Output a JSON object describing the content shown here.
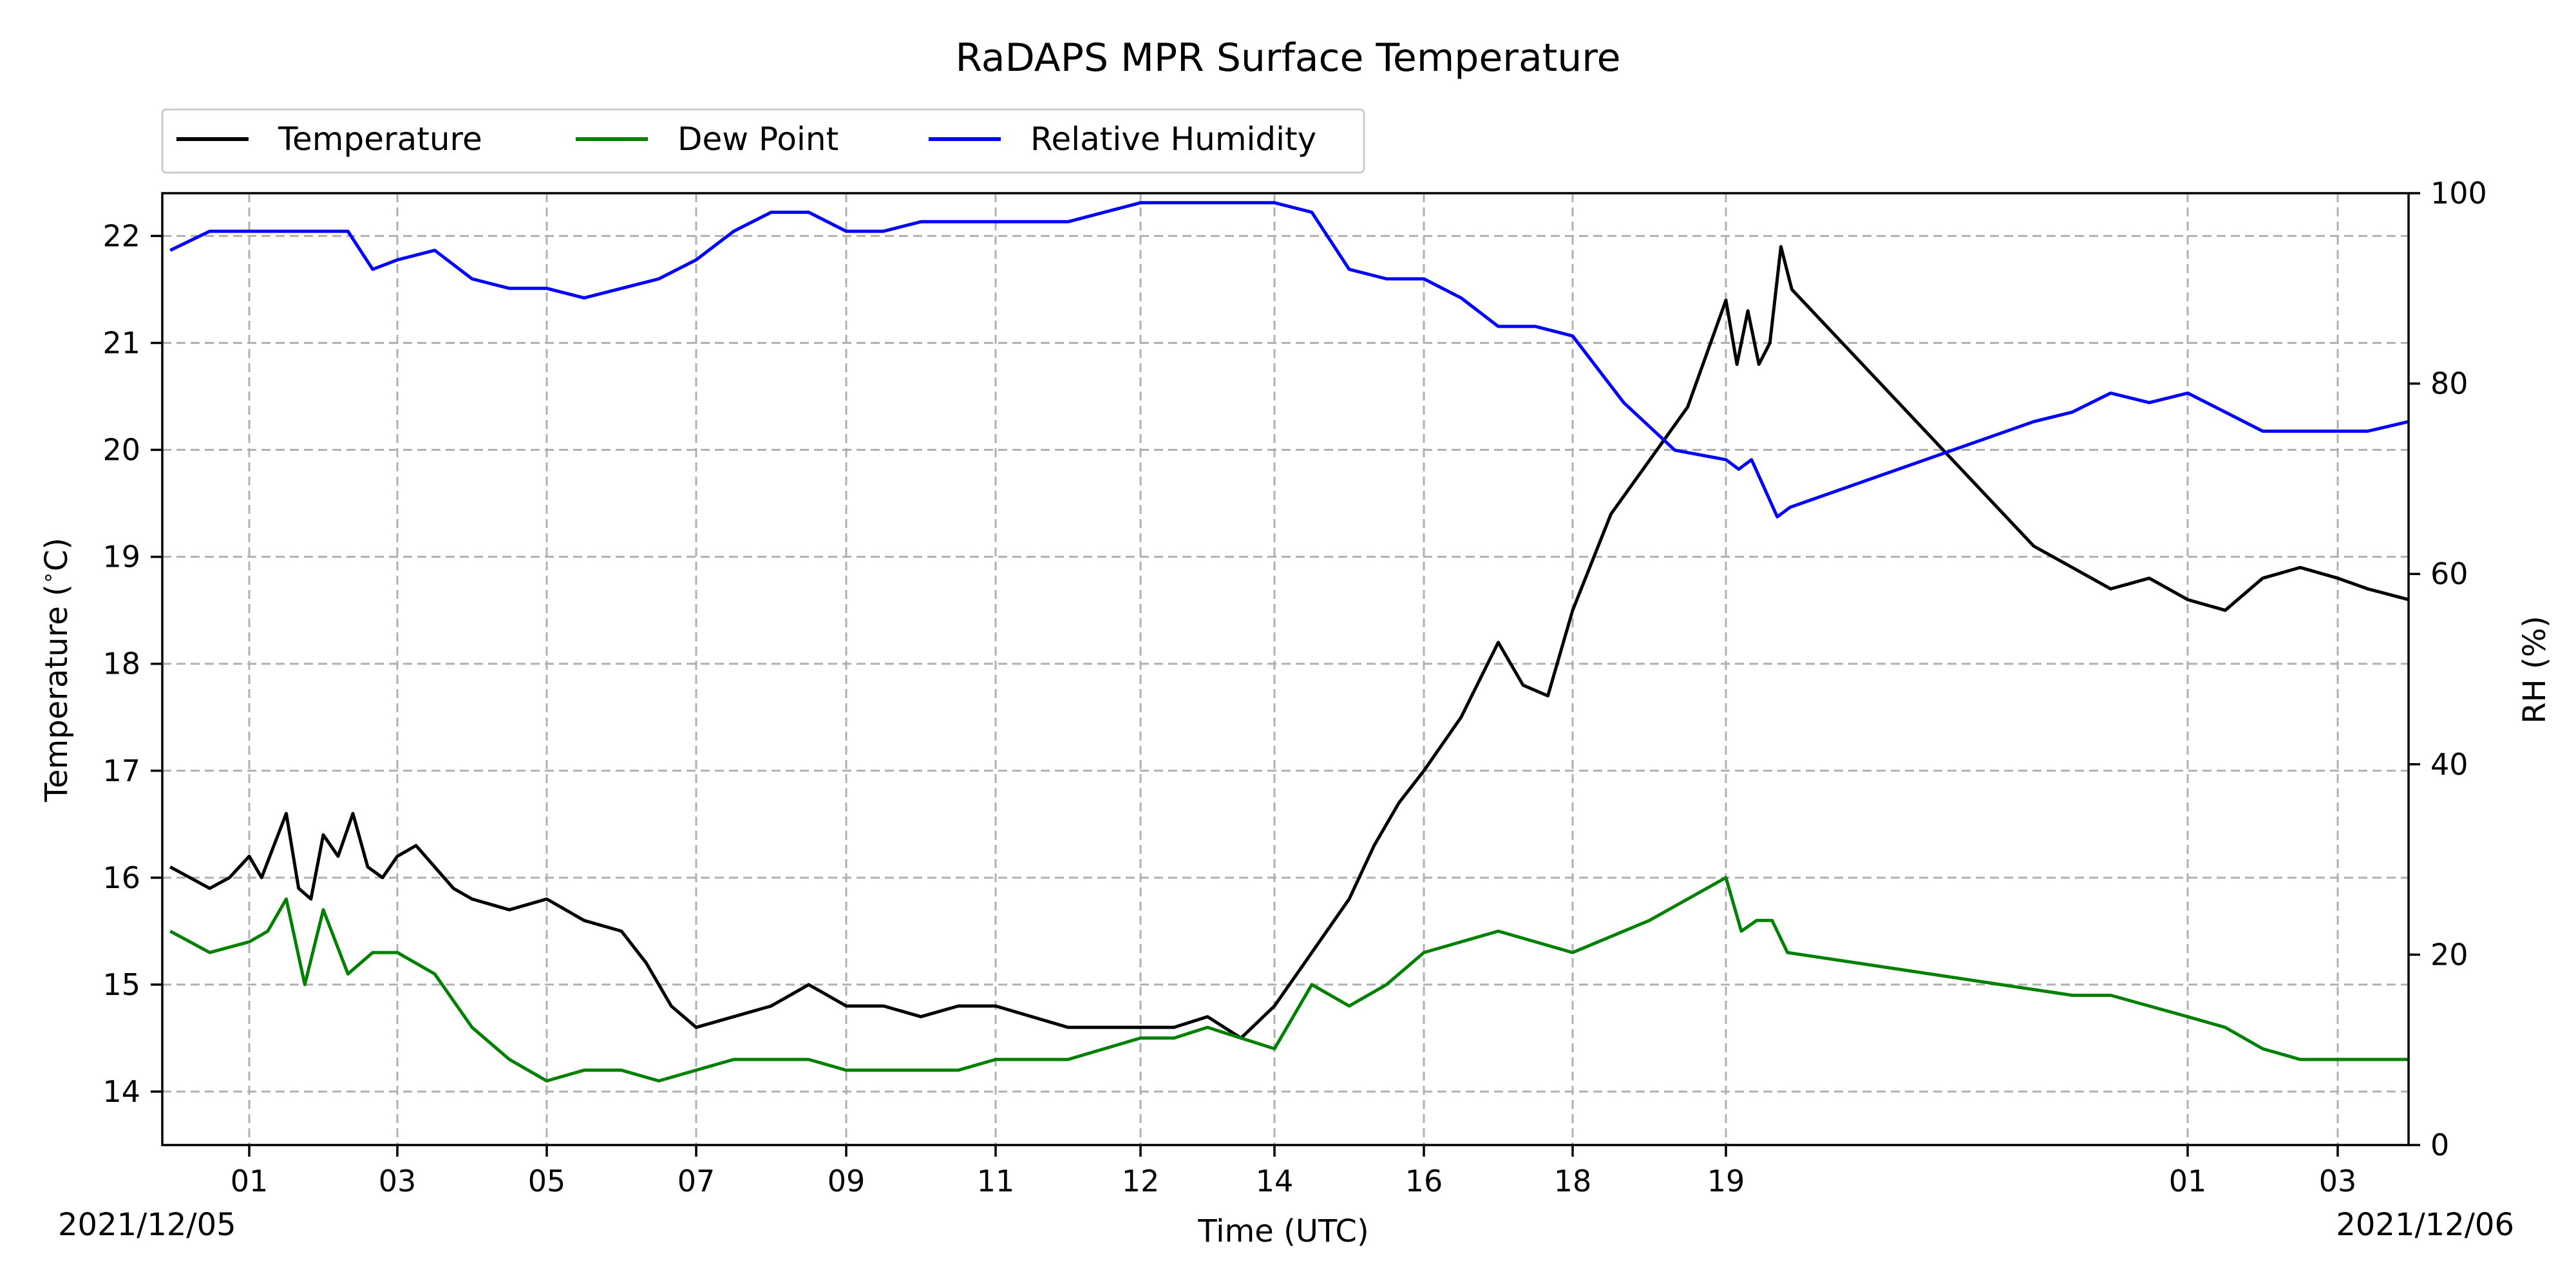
{
  "chart_data": {
    "type": "line",
    "title": "RaDAPS MPR Surface Temperature",
    "xlabel": "Time (UTC)",
    "ylabel_left": "Temperature (°C)",
    "ylabel_right": "RH (%)",
    "date_start": "2021/12/05",
    "date_end": "2021/12/06",
    "x_ticks": [
      "01",
      "03",
      "05",
      "07",
      "09",
      "11",
      "12",
      "14",
      "16",
      "18",
      "19",
      "01",
      "03"
    ],
    "ylim_left": [
      13.5,
      22.4
    ],
    "yticks_left": [
      "14",
      "15",
      "16",
      "17",
      "18",
      "19",
      "20",
      "21",
      "22"
    ],
    "ylim_right": [
      0,
      100
    ],
    "yticks_right": [
      "0",
      "20",
      "40",
      "60",
      "80",
      "100"
    ],
    "grid": true,
    "legend_location": "top-left, above plot",
    "series": [
      {
        "name": "Temperature",
        "axis": "left",
        "color": "#000000",
        "points": [
          [
            "00",
            16.1
          ],
          [
            "00",
            16.0
          ],
          [
            "00",
            15.9
          ],
          [
            "00",
            16.0
          ],
          [
            "01",
            16.2
          ],
          [
            "01",
            16.0
          ],
          [
            "01",
            16.3
          ],
          [
            "01",
            16.6
          ],
          [
            "01",
            15.9
          ],
          [
            "01",
            15.8
          ],
          [
            "02",
            16.4
          ],
          [
            "02",
            16.2
          ],
          [
            "02",
            16.6
          ],
          [
            "02",
            16.1
          ],
          [
            "02",
            16.0
          ],
          [
            "03",
            16.2
          ],
          [
            "03",
            16.3
          ],
          [
            "03",
            16.1
          ],
          [
            "03",
            15.9
          ],
          [
            "04",
            15.8
          ],
          [
            "04",
            15.7
          ],
          [
            "05",
            15.8
          ],
          [
            "05",
            15.6
          ],
          [
            "06",
            15.5
          ],
          [
            "06",
            15.2
          ],
          [
            "06",
            14.8
          ],
          [
            "07",
            14.6
          ],
          [
            "07",
            14.7
          ],
          [
            "08",
            14.8
          ],
          [
            "08",
            15.0
          ],
          [
            "09",
            14.8
          ],
          [
            "09",
            14.8
          ],
          [
            "10",
            14.7
          ],
          [
            "10",
            14.8
          ],
          [
            "11",
            14.8
          ],
          [
            "11",
            14.6
          ],
          [
            "12",
            14.6
          ],
          [
            "12",
            14.6
          ],
          [
            "13",
            14.7
          ],
          [
            "13",
            14.5
          ],
          [
            "14",
            14.8
          ],
          [
            "14",
            15.3
          ],
          [
            "15",
            15.8
          ],
          [
            "15",
            16.3
          ],
          [
            "15",
            16.7
          ],
          [
            "16",
            17.0
          ],
          [
            "16",
            17.5
          ],
          [
            "17",
            18.2
          ],
          [
            "17",
            17.8
          ],
          [
            "17",
            17.7
          ],
          [
            "18",
            18.5
          ],
          [
            "18",
            19.4
          ],
          [
            "18",
            19.9
          ],
          [
            "18",
            20.4
          ],
          [
            "19",
            21.4
          ],
          [
            "19",
            20.8
          ],
          [
            "19",
            21.3
          ],
          [
            "19",
            20.8
          ],
          [
            "19",
            21.0
          ],
          [
            "19",
            21.9
          ],
          [
            "19",
            21.5
          ],
          [
            "23",
            19.1
          ],
          [
            "23",
            18.9
          ],
          [
            "00",
            18.7
          ],
          [
            "00",
            18.8
          ],
          [
            "01",
            18.6
          ],
          [
            "01",
            18.5
          ],
          [
            "02",
            18.8
          ],
          [
            "02",
            18.9
          ],
          [
            "03",
            18.8
          ],
          [
            "03",
            18.7
          ],
          [
            "04",
            18.6
          ]
        ]
      },
      {
        "name": "Dew Point",
        "axis": "left",
        "color": "#008000",
        "points": [
          [
            "00",
            15.5
          ],
          [
            "00",
            15.3
          ],
          [
            "01",
            15.4
          ],
          [
            "01",
            15.5
          ],
          [
            "01",
            15.8
          ],
          [
            "01",
            15.0
          ],
          [
            "02",
            15.7
          ],
          [
            "02",
            15.1
          ],
          [
            "02",
            15.3
          ],
          [
            "03",
            15.3
          ],
          [
            "03",
            15.1
          ],
          [
            "04",
            14.6
          ],
          [
            "04",
            14.3
          ],
          [
            "05",
            14.1
          ],
          [
            "05",
            14.2
          ],
          [
            "06",
            14.2
          ],
          [
            "06",
            14.1
          ],
          [
            "07",
            14.3
          ],
          [
            "08",
            14.3
          ],
          [
            "08",
            14.3
          ],
          [
            "09",
            14.2
          ],
          [
            "09",
            14.2
          ],
          [
            "10",
            14.2
          ],
          [
            "10",
            14.2
          ],
          [
            "11",
            14.3
          ],
          [
            "11",
            14.3
          ],
          [
            "12",
            14.5
          ],
          [
            "12",
            14.5
          ],
          [
            "13",
            14.6
          ],
          [
            "13",
            14.5
          ],
          [
            "14",
            14.4
          ],
          [
            "14",
            15.0
          ],
          [
            "15",
            14.8
          ],
          [
            "15",
            15.0
          ],
          [
            "16",
            15.3
          ],
          [
            "16",
            15.4
          ],
          [
            "17",
            15.5
          ],
          [
            "17",
            15.4
          ],
          [
            "18",
            15.3
          ],
          [
            "18",
            15.6
          ],
          [
            "19",
            16.0
          ],
          [
            "19",
            15.5
          ],
          [
            "19",
            15.6
          ],
          [
            "19",
            15.6
          ],
          [
            "19",
            15.3
          ],
          [
            "23",
            14.9
          ],
          [
            "00",
            14.9
          ],
          [
            "00",
            14.8
          ],
          [
            "01",
            14.7
          ],
          [
            "01",
            14.6
          ],
          [
            "02",
            14.4
          ],
          [
            "02",
            14.3
          ],
          [
            "03",
            14.3
          ],
          [
            "04",
            14.3
          ]
        ]
      },
      {
        "name": "Relative Humidity",
        "axis": "right",
        "color": "#0000ff",
        "points": [
          [
            "00",
            94
          ],
          [
            "00",
            96
          ],
          [
            "01",
            96
          ],
          [
            "01",
            96
          ],
          [
            "02",
            96
          ],
          [
            "02",
            96
          ],
          [
            "02",
            92
          ],
          [
            "03",
            93
          ],
          [
            "03",
            94
          ],
          [
            "04",
            91
          ],
          [
            "04",
            90
          ],
          [
            "05",
            90
          ],
          [
            "05",
            89
          ],
          [
            "06",
            90
          ],
          [
            "06",
            91
          ],
          [
            "07",
            93
          ],
          [
            "07",
            96
          ],
          [
            "08",
            98
          ],
          [
            "08",
            98
          ],
          [
            "09",
            96
          ],
          [
            "09",
            96
          ],
          [
            "10",
            97
          ],
          [
            "10",
            97
          ],
          [
            "11",
            97
          ],
          [
            "11",
            97
          ],
          [
            "12",
            99
          ],
          [
            "12",
            99
          ],
          [
            "13",
            99
          ],
          [
            "13",
            99
          ],
          [
            "14",
            99
          ],
          [
            "14",
            98
          ],
          [
            "15",
            92
          ],
          [
            "15",
            91
          ],
          [
            "16",
            91
          ],
          [
            "16",
            89
          ],
          [
            "17",
            86
          ],
          [
            "17",
            86
          ],
          [
            "18",
            85
          ],
          [
            "18",
            78
          ],
          [
            "18",
            73
          ],
          [
            "19",
            72
          ],
          [
            "19",
            71
          ],
          [
            "19",
            72
          ],
          [
            "19",
            69
          ],
          [
            "19",
            66
          ],
          [
            "19",
            67
          ],
          [
            "23",
            76
          ],
          [
            "23",
            77
          ],
          [
            "00",
            79
          ],
          [
            "00",
            78
          ],
          [
            "01",
            79
          ],
          [
            "01",
            77
          ],
          [
            "02",
            75
          ],
          [
            "02",
            75
          ],
          [
            "03",
            75
          ],
          [
            "04",
            76
          ]
        ]
      }
    ]
  }
}
